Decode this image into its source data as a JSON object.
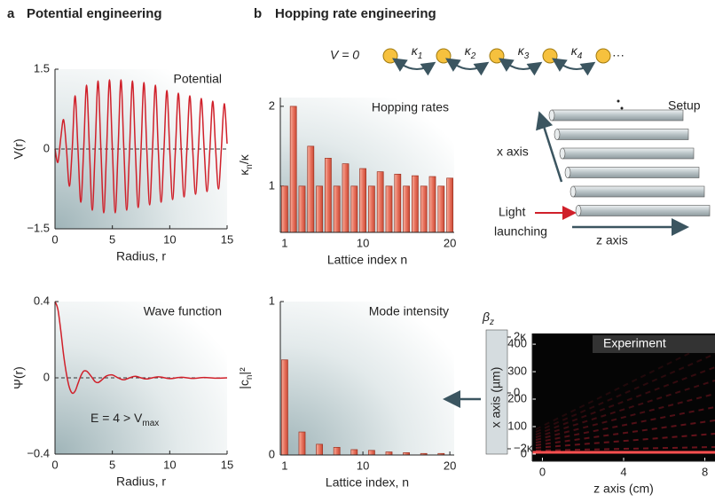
{
  "panels": {
    "a": {
      "letter": "a",
      "title": "Potential engineering"
    },
    "b": {
      "letter": "b",
      "title": "Hopping rate engineering"
    }
  },
  "lattice": {
    "v_label": "V = 0",
    "couplings": [
      [
        "κ",
        "1"
      ],
      [
        "κ",
        "2"
      ],
      [
        "κ",
        "3"
      ],
      [
        "κ",
        "4"
      ]
    ],
    "ellipsis": "···"
  },
  "setup": {
    "title": "Setup",
    "x_axis": "x axis",
    "light": "Light",
    "launching": "launching",
    "z_axis": "z axis"
  },
  "chart_data": [
    {
      "type": "line",
      "annotation": "Potential",
      "x_label": "Radius, r",
      "y_label": "V(r)",
      "xlim": [
        0,
        15
      ],
      "ylim": [
        -1.5,
        1.5
      ],
      "xticks": [
        0,
        5,
        10,
        15
      ],
      "yticks": [
        {
          "value": -1.5,
          "label": "−1.5"
        },
        0,
        1.5
      ],
      "zero_line": true,
      "x": [
        0,
        0.25,
        0.5,
        0.75,
        1,
        1.25,
        1.5,
        1.75,
        2,
        2.25,
        2.5,
        2.75,
        3,
        3.25,
        3.5,
        3.75,
        4,
        4.25,
        4.5,
        4.75,
        5,
        5.25,
        5.5,
        5.75,
        6,
        6.25,
        6.5,
        6.75,
        7,
        7.25,
        7.5,
        7.75,
        8,
        8.25,
        8.5,
        8.75,
        9,
        9.25,
        9.5,
        9.75,
        10,
        10.25,
        10.5,
        10.75,
        11,
        11.25,
        11.5,
        11.75,
        12,
        12.25,
        12.5,
        12.75,
        13,
        13.25,
        13.5,
        13.75,
        14,
        14.25,
        14.5,
        14.75,
        15
      ],
      "series": [
        {
          "color": "#d0202a",
          "values": [
            0,
            -0.25,
            0.2,
            0.55,
            0,
            -0.7,
            0,
            1.0,
            0,
            -1.0,
            0,
            1.2,
            0,
            -1.15,
            0,
            1.28,
            0,
            -1.2,
            0,
            1.3,
            0,
            -1.2,
            0,
            1.3,
            0,
            -1.15,
            0,
            1.28,
            0,
            -1.1,
            0,
            1.25,
            0,
            -1.05,
            0,
            1.2,
            0,
            -1.0,
            0,
            1.1,
            0,
            -0.95,
            0,
            1.05,
            0,
            -0.9,
            0,
            1.0,
            0,
            -0.85,
            0,
            0.95,
            0,
            -0.8,
            0,
            0.9,
            0,
            -0.75,
            0,
            0.85,
            0.1
          ]
        }
      ]
    },
    {
      "type": "line",
      "annotation": "Wave function",
      "annotation2": [
        "E = 4 > V",
        "max"
      ],
      "x_label": "Radius, r",
      "y_label": "Ψ(r)",
      "xlim": [
        0,
        15
      ],
      "ylim": [
        -0.4,
        0.4
      ],
      "xticks": [
        0,
        5,
        10,
        15
      ],
      "yticks": [
        {
          "value": -0.4,
          "label": "−0.4"
        },
        0,
        0.4
      ],
      "zero_line": true,
      "x": [
        0,
        0.25,
        0.5,
        0.75,
        1,
        1.25,
        1.5,
        1.75,
        2,
        2.25,
        2.5,
        2.75,
        3,
        3.25,
        3.5,
        3.75,
        4,
        4.5,
        5,
        5.5,
        6,
        6.5,
        7,
        7.5,
        8,
        9,
        10,
        11,
        12,
        13,
        14,
        15
      ],
      "series": [
        {
          "color": "#d0202a",
          "values": [
            0.4,
            0.36,
            0.25,
            0.12,
            0.02,
            -0.05,
            -0.08,
            -0.07,
            -0.03,
            0.01,
            0.035,
            0.035,
            0.02,
            0,
            -0.02,
            -0.025,
            -0.015,
            0.01,
            0.015,
            0,
            -0.01,
            0,
            0.008,
            0,
            -0.006,
            0.005,
            -0.004,
            0.003,
            -0.003,
            0.002,
            -0.002,
            0
          ]
        }
      ]
    },
    {
      "type": "bar",
      "annotation": "Hopping rates",
      "x_label": "Lattice index n",
      "y_label": [
        "κ",
        "n",
        "/κ"
      ],
      "xlim": [
        0.5,
        20.5
      ],
      "ylim": [
        0.42,
        2.11
      ],
      "xticks": [
        1,
        10,
        20
      ],
      "yticks": [
        1,
        2
      ],
      "x": [
        1,
        2,
        3,
        4,
        5,
        6,
        7,
        8,
        9,
        10,
        11,
        12,
        13,
        14,
        15,
        16,
        17,
        18,
        19,
        20
      ],
      "values": [
        1.0,
        2.0,
        1.0,
        1.5,
        1.0,
        1.35,
        1.0,
        1.28,
        1.0,
        1.22,
        1.0,
        1.18,
        1.0,
        1.15,
        1.0,
        1.13,
        1.0,
        1.12,
        1.0,
        1.1
      ],
      "color": "#e8735f"
    },
    {
      "type": "bar",
      "annotation": "Mode intensity",
      "x_label": "Lattice index, n",
      "y_label": [
        "|c",
        "n",
        "|²"
      ],
      "xlim": [
        0.5,
        20.5
      ],
      "ylim": [
        0,
        1
      ],
      "xticks": [
        1,
        10,
        20
      ],
      "yticks": [
        0,
        1
      ],
      "x": [
        1,
        3,
        5,
        7,
        9,
        11,
        13,
        15,
        17,
        19
      ],
      "values": [
        0.62,
        0.15,
        0.07,
        0.05,
        0.035,
        0.03,
        0.02,
        0.015,
        0.01,
        0.01
      ],
      "color": "#e8735f",
      "colorbar": {
        "label": [
          "β",
          "z"
        ],
        "ticks": [
          "2κ",
          "0",
          "−2κ"
        ]
      }
    },
    {
      "type": "heatmap",
      "annotation": "Experiment",
      "x_label": "z axis (cm)",
      "y_label": "x axis (µm)",
      "xlim": [
        -0.5,
        8.5
      ],
      "ylim": [
        -26,
        439
      ],
      "xticks": [
        0,
        4,
        8
      ],
      "yticks": [
        0,
        100,
        200,
        300,
        400
      ]
    }
  ]
}
